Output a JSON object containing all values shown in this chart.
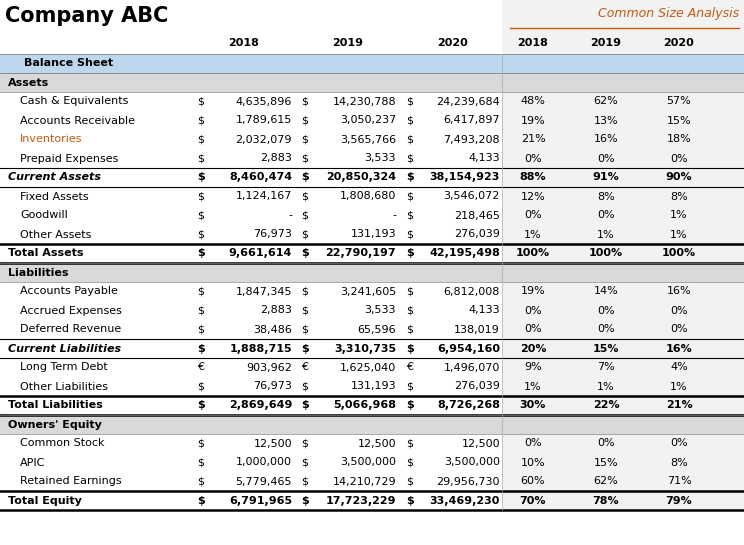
{
  "title_left": "Company ABC",
  "title_right": "Common Size Analysis",
  "rows": [
    {
      "label": "Balance Sheet",
      "type": "section_header",
      "indent": 0,
      "curr": [
        "",
        "",
        ""
      ],
      "values": [
        "",
        "",
        "",
        "",
        "",
        ""
      ]
    },
    {
      "label": "Assets",
      "type": "sub_header",
      "indent": 0,
      "curr": [
        "",
        "",
        ""
      ],
      "values": [
        "",
        "",
        "",
        "",
        "",
        ""
      ]
    },
    {
      "label": "Cash & Equivalents",
      "type": "data",
      "indent": 1,
      "curr": [
        "$",
        "$",
        "$"
      ],
      "values": [
        "4,635,896",
        "14,230,788",
        "24,239,684",
        "48%",
        "62%",
        "57%"
      ]
    },
    {
      "label": "Accounts Receivable",
      "type": "data",
      "indent": 1,
      "curr": [
        "$",
        "$",
        "$"
      ],
      "values": [
        "1,789,615",
        "3,050,237",
        "6,417,897",
        "19%",
        "13%",
        "15%"
      ]
    },
    {
      "label": "Inventories",
      "type": "data_orange",
      "indent": 1,
      "curr": [
        "$",
        "$",
        "$"
      ],
      "values": [
        "2,032,079",
        "3,565,766",
        "7,493,208",
        "21%",
        "16%",
        "18%"
      ]
    },
    {
      "label": "Prepaid Expenses",
      "type": "data",
      "indent": 1,
      "curr": [
        "$",
        "$",
        "$"
      ],
      "values": [
        "2,883",
        "3,533",
        "4,133",
        "0%",
        "0%",
        "0%"
      ]
    },
    {
      "label": "Current Assets",
      "type": "subtotal",
      "indent": 0,
      "curr": [
        "$",
        "$",
        "$"
      ],
      "values": [
        "8,460,474",
        "20,850,324",
        "38,154,923",
        "88%",
        "91%",
        "90%"
      ]
    },
    {
      "label": "Fixed Assets",
      "type": "data",
      "indent": 1,
      "curr": [
        "$",
        "$",
        "$"
      ],
      "values": [
        "1,124,167",
        "1,808,680",
        "3,546,072",
        "12%",
        "8%",
        "8%"
      ]
    },
    {
      "label": "Goodwill",
      "type": "data",
      "indent": 1,
      "curr": [
        "$",
        "$",
        "$"
      ],
      "values": [
        "-",
        "-",
        "218,465",
        "0%",
        "0%",
        "1%"
      ]
    },
    {
      "label": "Other Assets",
      "type": "data",
      "indent": 1,
      "curr": [
        "$",
        "$",
        "$"
      ],
      "values": [
        "76,973",
        "131,193",
        "276,039",
        "1%",
        "1%",
        "1%"
      ]
    },
    {
      "label": "Total Assets",
      "type": "total",
      "indent": 0,
      "curr": [
        "$",
        "$",
        "$"
      ],
      "values": [
        "9,661,614",
        "22,790,197",
        "42,195,498",
        "100%",
        "100%",
        "100%"
      ]
    },
    {
      "label": "Liabilities",
      "type": "sub_header",
      "indent": 0,
      "curr": [
        "",
        "",
        ""
      ],
      "values": [
        "",
        "",
        "",
        "",
        "",
        ""
      ]
    },
    {
      "label": "Accounts Payable",
      "type": "data",
      "indent": 1,
      "curr": [
        "$",
        "$",
        "$"
      ],
      "values": [
        "1,847,345",
        "3,241,605",
        "6,812,008",
        "19%",
        "14%",
        "16%"
      ]
    },
    {
      "label": "Accrued Expenses",
      "type": "data",
      "indent": 1,
      "curr": [
        "$",
        "$",
        "$"
      ],
      "values": [
        "2,883",
        "3,533",
        "4,133",
        "0%",
        "0%",
        "0%"
      ]
    },
    {
      "label": "Deferred Revenue",
      "type": "data",
      "indent": 1,
      "curr": [
        "$",
        "$",
        "$"
      ],
      "values": [
        "38,486",
        "65,596",
        "138,019",
        "0%",
        "0%",
        "0%"
      ]
    },
    {
      "label": "Current Liabilities",
      "type": "subtotal",
      "indent": 0,
      "curr": [
        "$",
        "$",
        "$"
      ],
      "values": [
        "1,888,715",
        "3,310,735",
        "6,954,160",
        "20%",
        "15%",
        "16%"
      ]
    },
    {
      "label": "Long Term Debt",
      "type": "data",
      "indent": 1,
      "curr": [
        "€",
        "€",
        "€"
      ],
      "values": [
        "903,962",
        "1,625,040",
        "1,496,070",
        "9%",
        "7%",
        "4%"
      ]
    },
    {
      "label": "Other Liabilities",
      "type": "data",
      "indent": 1,
      "curr": [
        "$",
        "$",
        "$"
      ],
      "values": [
        "76,973",
        "131,193",
        "276,039",
        "1%",
        "1%",
        "1%"
      ]
    },
    {
      "label": "Total Liabilities",
      "type": "total",
      "indent": 0,
      "curr": [
        "$",
        "$",
        "$"
      ],
      "values": [
        "2,869,649",
        "5,066,968",
        "8,726,268",
        "30%",
        "22%",
        "21%"
      ]
    },
    {
      "label": "Owners' Equity",
      "type": "section_header2",
      "indent": 0,
      "curr": [
        "",
        "",
        ""
      ],
      "values": [
        "",
        "",
        "",
        "",
        "",
        ""
      ]
    },
    {
      "label": "Common Stock",
      "type": "data",
      "indent": 1,
      "curr": [
        "$",
        "$",
        "$"
      ],
      "values": [
        "12,500",
        "12,500",
        "12,500",
        "0%",
        "0%",
        "0%"
      ]
    },
    {
      "label": "APIC",
      "type": "data",
      "indent": 1,
      "curr": [
        "$",
        "$",
        "$"
      ],
      "values": [
        "1,000,000",
        "3,500,000",
        "3,500,000",
        "10%",
        "15%",
        "8%"
      ]
    },
    {
      "label": "Retained Earnings",
      "type": "data",
      "indent": 1,
      "curr": [
        "$",
        "$",
        "$"
      ],
      "values": [
        "5,779,465",
        "14,210,729",
        "29,956,730",
        "60%",
        "62%",
        "71%"
      ]
    },
    {
      "label": "Total Equity",
      "type": "total",
      "indent": 0,
      "curr": [
        "$",
        "$",
        "$"
      ],
      "values": [
        "6,791,965",
        "17,723,229",
        "33,469,230",
        "70%",
        "78%",
        "79%"
      ]
    }
  ],
  "colors": {
    "section_header_bg": "#BDD7EE",
    "sub_header_bg": "#D9D9D9",
    "right_panel_bg": "#F2F2F2",
    "white": "#FFFFFF",
    "orange_text": "#C55A11",
    "black_text": "#000000"
  },
  "figw": 7.44,
  "figh": 5.45,
  "dpi": 100
}
